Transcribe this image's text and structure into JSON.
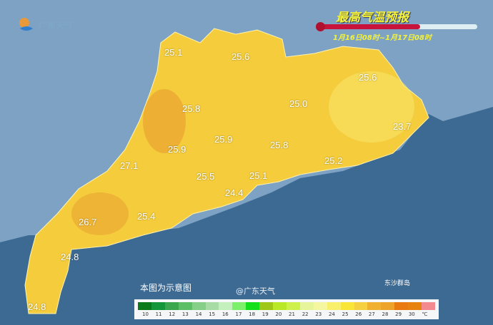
{
  "header": {
    "title": "最高气温预报",
    "period": "1月16日08时~1月17日08时",
    "brand": "广东天气"
  },
  "note": "本图为示意图",
  "island_label": "东沙群岛",
  "watermark": "@广东天气",
  "temperatures": [
    "25.1",
    "25.6",
    "25.6",
    "25.0",
    "25.8",
    "23.7",
    "25.9",
    "25.9",
    "25.8",
    "27.1",
    "25.2",
    "25.5",
    "25.1",
    "24.4",
    "26.7",
    "25.4",
    "24.8",
    "24.8"
  ],
  "legend": {
    "labels": [
      "10",
      "11",
      "12",
      "13",
      "14",
      "15",
      "16",
      "17",
      "18",
      "19",
      "20",
      "21",
      "22",
      "23",
      "24",
      "25",
      "26",
      "27",
      "28",
      "29",
      "30"
    ],
    "unit": "℃",
    "colors": [
      "#0a7a1a",
      "#13973a",
      "#3aa64e",
      "#5cbf66",
      "#86cf88",
      "#a7dca5",
      "#c3f0bd",
      "#7cf06a",
      "#13e01a",
      "#9ec71a",
      "#b8e826",
      "#cdf04a",
      "#e6f59a",
      "#f4f7a0",
      "#f8f06a",
      "#f8e538",
      "#f5d040",
      "#f0b030",
      "#eda22a",
      "#e87a10",
      "#e8820e",
      "#f28a90"
    ]
  },
  "colors": {
    "sea": "#3d6a93",
    "land_outer": "#7da2c4",
    "province": "#f5cc3c",
    "hot": "#e9a430"
  }
}
